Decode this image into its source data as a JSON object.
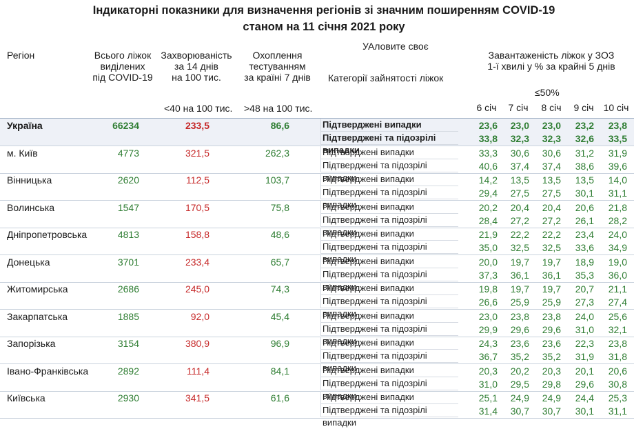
{
  "title": {
    "line1": "Індикаторні показники для визначення регіонів зі значним поширенням COVID-19",
    "line2": "станом на 11 січня 2021 року"
  },
  "headers": {
    "region": "Регіон",
    "beds": [
      "Всього ліжок",
      "виділених",
      "під COVID-19"
    ],
    "incidence": [
      "Захворюваність",
      "за 14 днів",
      "на 100 тис."
    ],
    "testing": [
      "Охоплення",
      "тестуванням",
      "за країні 7 днів"
    ],
    "category_select": "УАловите своє",
    "category": "Категорії зайнятості ліжок",
    "load": [
      "Завантаженість ліжок у ЗОЗ",
      "1-ї хвилі у % за крайні 5 днів"
    ],
    "threshold_incidence": "<40 на 100 тис.",
    "threshold_testing": ">48 на 100 тис.",
    "threshold_load": "≤50%",
    "days": [
      "6 січ",
      "7 січ",
      "8 січ",
      "9 січ",
      "10 січ"
    ]
  },
  "categories": {
    "confirmed": "Підтверджені випадки",
    "confirmed_suspected": "Підтверджені та підозрілі випадки"
  },
  "colors": {
    "good": "#2e7d32",
    "bad": "#c62828"
  },
  "rows": [
    {
      "name": "Україна",
      "beds": "66234",
      "incidence": "233,5",
      "testing": "86,6",
      "confirmed": [
        "23,6",
        "23,0",
        "23,0",
        "23,2",
        "23,8"
      ],
      "suspected": [
        "33,8",
        "32,3",
        "32,3",
        "32,6",
        "33,5"
      ]
    },
    {
      "name": "м. Київ",
      "beds": "4773",
      "incidence": "321,5",
      "testing": "262,3",
      "confirmed": [
        "33,3",
        "30,6",
        "30,6",
        "31,2",
        "31,9"
      ],
      "suspected": [
        "40,6",
        "37,4",
        "37,4",
        "38,6",
        "39,6"
      ]
    },
    {
      "name": "Вінницька",
      "beds": "2620",
      "incidence": "112,5",
      "testing": "103,7",
      "confirmed": [
        "14,2",
        "13,5",
        "13,5",
        "13,5",
        "14,0"
      ],
      "suspected": [
        "29,4",
        "27,5",
        "27,5",
        "30,1",
        "31,1"
      ]
    },
    {
      "name": "Волинська",
      "beds": "1547",
      "incidence": "170,5",
      "testing": "75,8",
      "confirmed": [
        "20,2",
        "20,4",
        "20,4",
        "20,6",
        "21,8"
      ],
      "suspected": [
        "28,4",
        "27,2",
        "27,2",
        "26,1",
        "28,2"
      ]
    },
    {
      "name": "Дніпропетровська",
      "beds": "4813",
      "incidence": "158,8",
      "testing": "48,6",
      "confirmed": [
        "21,9",
        "22,2",
        "22,2",
        "23,4",
        "24,0"
      ],
      "suspected": [
        "35,0",
        "32,5",
        "32,5",
        "33,6",
        "34,9"
      ]
    },
    {
      "name": "Донецька",
      "beds": "3701",
      "incidence": "233,4",
      "testing": "65,7",
      "confirmed": [
        "20,0",
        "19,7",
        "19,7",
        "18,9",
        "19,0"
      ],
      "suspected": [
        "37,3",
        "36,1",
        "36,1",
        "35,3",
        "36,0"
      ]
    },
    {
      "name": "Житомирська",
      "beds": "2686",
      "incidence": "245,0",
      "testing": "74,3",
      "confirmed": [
        "19,8",
        "19,7",
        "19,7",
        "20,7",
        "21,1"
      ],
      "suspected": [
        "26,6",
        "25,9",
        "25,9",
        "27,3",
        "27,4"
      ]
    },
    {
      "name": "Закарпатська",
      "beds": "1885",
      "incidence": "92,0",
      "testing": "45,4",
      "confirmed": [
        "23,0",
        "23,8",
        "23,8",
        "24,0",
        "25,6"
      ],
      "suspected": [
        "29,9",
        "29,6",
        "29,6",
        "31,0",
        "32,1"
      ]
    },
    {
      "name": "Запорізька",
      "beds": "3154",
      "incidence": "380,9",
      "testing": "96,9",
      "confirmed": [
        "24,3",
        "23,6",
        "23,6",
        "22,3",
        "23,8"
      ],
      "suspected": [
        "36,7",
        "35,2",
        "35,2",
        "31,9",
        "31,8"
      ]
    },
    {
      "name": "Івано-Франківська",
      "beds": "2892",
      "incidence": "111,4",
      "testing": "84,1",
      "confirmed": [
        "20,3",
        "20,2",
        "20,3",
        "20,1",
        "20,6"
      ],
      "suspected": [
        "31,0",
        "29,5",
        "29,8",
        "29,6",
        "30,8"
      ]
    },
    {
      "name": "Київська",
      "beds": "2930",
      "incidence": "341,5",
      "testing": "61,6",
      "confirmed": [
        "25,1",
        "24,9",
        "24,9",
        "24,4",
        "25,3"
      ],
      "suspected": [
        "31,4",
        "30,7",
        "30,7",
        "30,1",
        "31,1"
      ]
    }
  ]
}
